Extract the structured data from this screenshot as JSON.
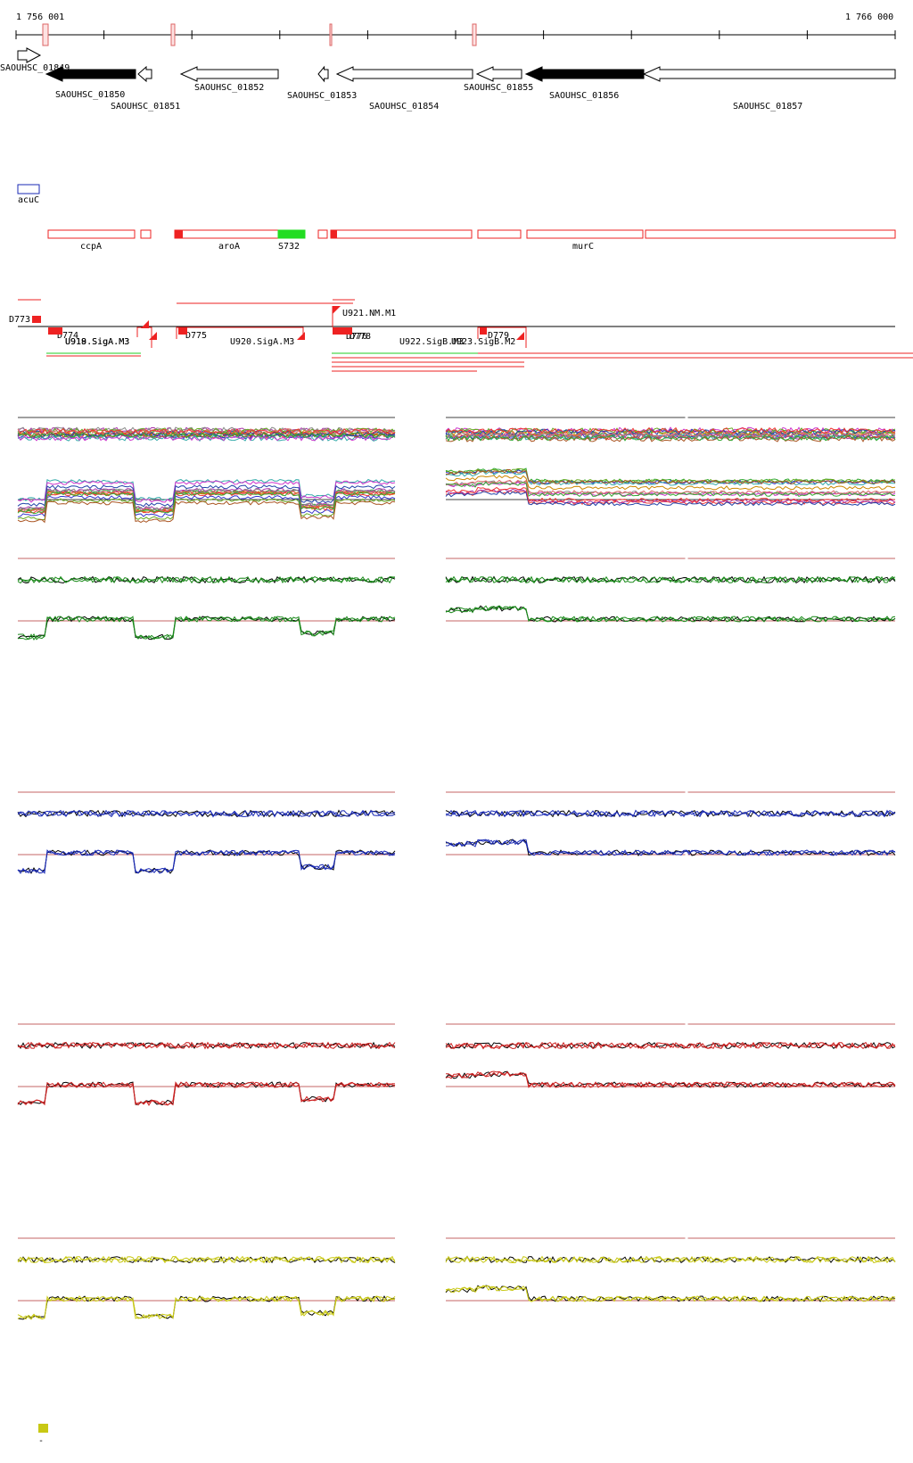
{
  "coordinates": {
    "start": "1 756 001",
    "end": "1 766 000"
  },
  "genes": [
    {
      "label": "SAOUHSC_01849",
      "strand": "+",
      "fill": "white"
    },
    {
      "label": "SAOUHSC_01850",
      "strand": "-",
      "fill": "black"
    },
    {
      "label": "SAOUHSC_01851",
      "strand": "-",
      "fill": "white"
    },
    {
      "label": "SAOUHSC_01852",
      "strand": "-",
      "fill": "white"
    },
    {
      "label": "SAOUHSC_01853",
      "strand": "-",
      "fill": "white"
    },
    {
      "label": "SAOUHSC_01854",
      "strand": "-",
      "fill": "white"
    },
    {
      "label": "SAOUHSC_01855",
      "strand": "-",
      "fill": "white"
    },
    {
      "label": "SAOUHSC_01856",
      "strand": "-",
      "fill": "black"
    },
    {
      "label": "SAOUHSC_01857",
      "strand": "-",
      "fill": "white"
    }
  ],
  "features": {
    "blue": [
      {
        "label": "acuC"
      }
    ],
    "red": [
      {
        "label": "ccpA"
      },
      {
        "label": ""
      },
      {
        "label": "aroA"
      },
      {
        "label": "S732",
        "color": "#22dd22"
      },
      {
        "label": ""
      },
      {
        "label": ""
      },
      {
        "label": ""
      },
      {
        "label": "murC"
      },
      {
        "label": ""
      }
    ]
  },
  "transcripts": {
    "labels": [
      "D773",
      "D774",
      "U918.SigA.M3",
      "U919.SigA.M3",
      "D775",
      "U920.SigA.M3",
      "U921.NM.M1",
      "D776",
      "D778",
      "U922.SigB.M3",
      "U923.SigB.M2",
      "D779"
    ]
  },
  "panels": {
    "colors": [
      "#multi",
      "#1a8a1a",
      "#1a2ab4",
      "#cc2020",
      "#c8c814"
    ]
  },
  "legend": {
    "swatch_color": "#c8c814",
    "label": "-"
  }
}
